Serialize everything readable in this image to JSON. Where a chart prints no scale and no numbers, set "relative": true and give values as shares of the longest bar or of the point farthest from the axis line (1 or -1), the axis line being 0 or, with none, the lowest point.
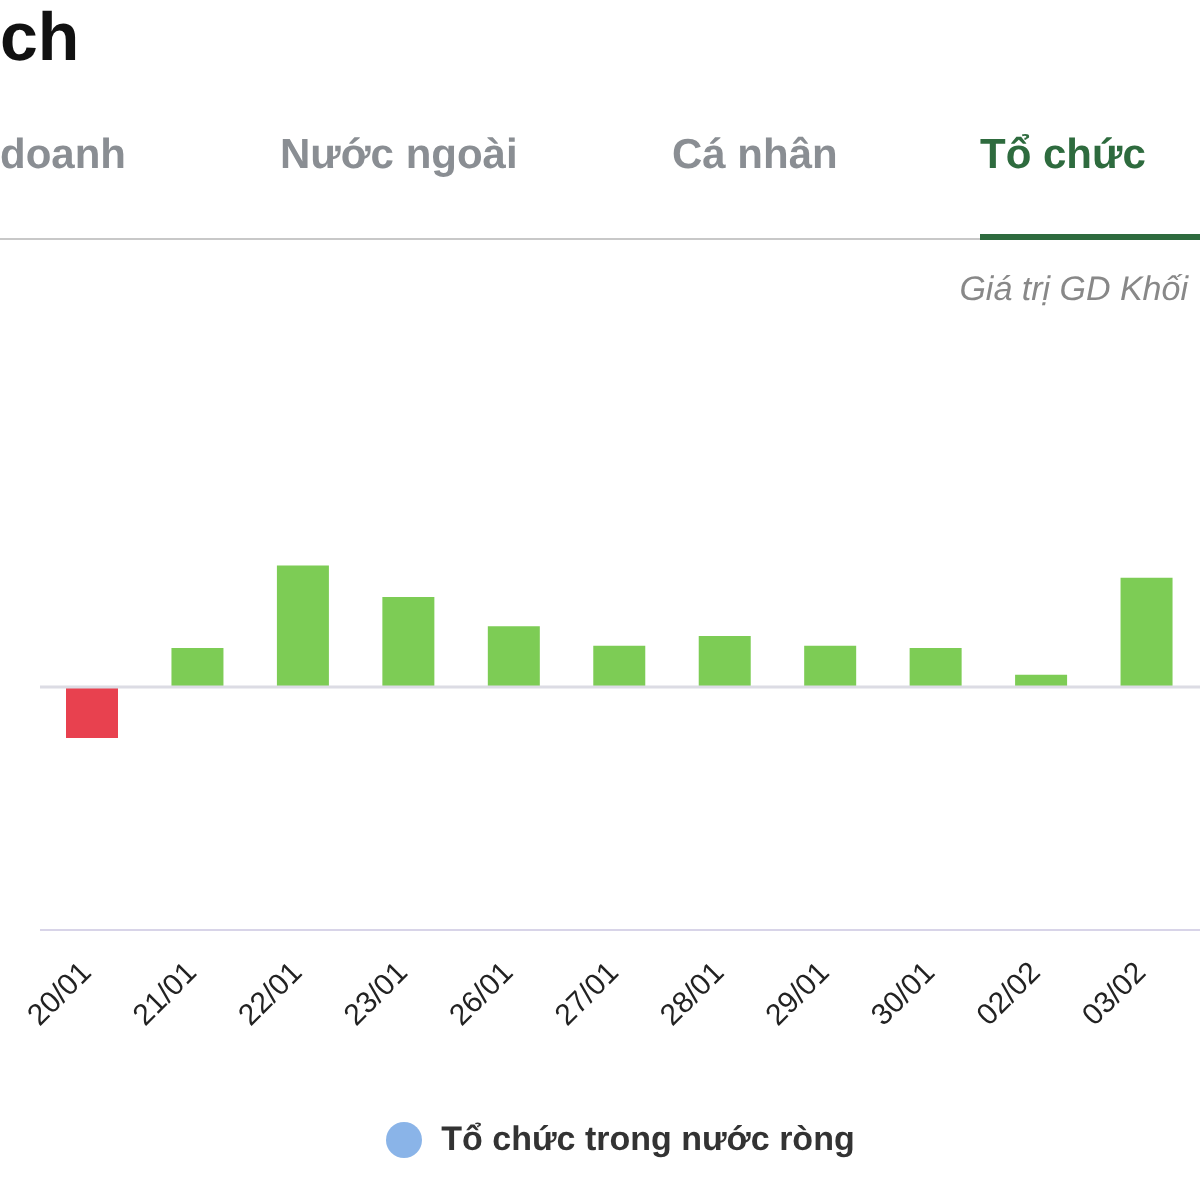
{
  "chart_data": {
    "type": "bar",
    "title": "ch",
    "annotations": [
      "doanh",
      "Nước ngoài",
      "Cá nhân",
      "Tổ chức"
    ],
    "subtitle": "Giá trị GD Khối",
    "categories": [
      "20/01",
      "21/01",
      "22/01",
      "23/01",
      "26/01",
      "27/01",
      "28/01",
      "29/01",
      "30/01",
      "02/02",
      "03/02"
    ],
    "relative": true,
    "series": [
      {
        "name": "Tổ chức trong nước ròng",
        "color": "#8ab4e8",
        "values": [
          -0.42,
          0.32,
          1,
          0.74,
          0.5,
          0.34,
          0.42,
          0.34,
          0.32,
          0.1,
          0.9
        ],
        "colors": [
          "#e8414f",
          "#7dcc55",
          "#7dcc55",
          "#7dcc55",
          "#7dcc55",
          "#7dcc55",
          "#7dcc55",
          "#7dcc55",
          "#7dcc55",
          "#7dcc55",
          "#7dcc55"
        ]
      }
    ],
    "ref_lines": [
      {
        "axis": "y",
        "value": 0,
        "color": "#dcdce4"
      }
    ],
    "legend": "bottom"
  }
}
